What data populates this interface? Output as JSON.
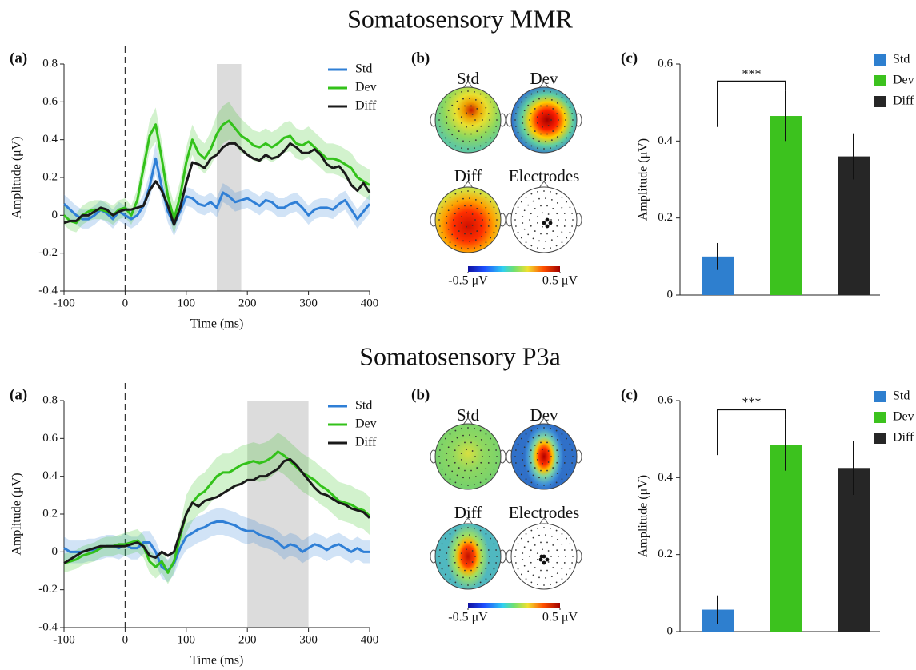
{
  "titles": [
    "Somatosensory MMR",
    "Somatosensory P3a"
  ],
  "chart_data": [
    {
      "type": "line",
      "panel": "(a)",
      "xlabel": "Time (ms)",
      "ylabel": "Amplitude (μV)",
      "x": [
        -100,
        -90,
        -80,
        -70,
        -60,
        -50,
        -40,
        -30,
        -20,
        -10,
        0,
        10,
        20,
        30,
        40,
        50,
        60,
        70,
        80,
        90,
        100,
        110,
        120,
        130,
        140,
        150,
        160,
        170,
        180,
        190,
        200,
        210,
        220,
        230,
        240,
        250,
        260,
        270,
        280,
        290,
        300,
        310,
        320,
        330,
        340,
        350,
        360,
        370,
        380,
        390,
        400
      ],
      "xlim": [
        -100,
        400
      ],
      "xticks": [
        -100,
        0,
        100,
        200,
        300,
        400
      ],
      "ylim": [
        -0.4,
        0.8
      ],
      "yticks": [
        -0.4,
        -0.2,
        0,
        0.2,
        0.4,
        0.6,
        0.8
      ],
      "event_line": 0,
      "window": [
        150,
        190
      ],
      "legend": "upper right",
      "series": [
        {
          "name": "Std",
          "color": "#2f7fd6",
          "values": [
            0.06,
            0.03,
            0.0,
            -0.02,
            -0.02,
            0.0,
            0.03,
            0.01,
            -0.02,
            0.02,
            0.0,
            -0.02,
            0.0,
            0.05,
            0.15,
            0.3,
            0.15,
            0.02,
            -0.05,
            0.02,
            0.1,
            0.09,
            0.06,
            0.05,
            0.07,
            0.04,
            0.12,
            0.1,
            0.07,
            0.08,
            0.09,
            0.07,
            0.05,
            0.08,
            0.07,
            0.04,
            0.04,
            0.06,
            0.07,
            0.04,
            0.0,
            0.03,
            0.04,
            0.04,
            0.03,
            0.06,
            0.08,
            0.03,
            -0.02,
            0.02,
            0.06
          ],
          "error": [
            0.05,
            0.05,
            0.05,
            0.05,
            0.05,
            0.05,
            0.05,
            0.05,
            0.05,
            0.05,
            0.05,
            0.05,
            0.05,
            0.06,
            0.07,
            0.08,
            0.07,
            0.06,
            0.06,
            0.06,
            0.05,
            0.05,
            0.05,
            0.05,
            0.05,
            0.05,
            0.05,
            0.05,
            0.05,
            0.05,
            0.05,
            0.05,
            0.05,
            0.05,
            0.05,
            0.05,
            0.05,
            0.05,
            0.05,
            0.05,
            0.05,
            0.05,
            0.05,
            0.05,
            0.05,
            0.05,
            0.05,
            0.05,
            0.05,
            0.05,
            0.05
          ]
        },
        {
          "name": "Dev",
          "color": "#33c21a",
          "values": [
            0.0,
            -0.03,
            -0.04,
            0.0,
            0.02,
            0.03,
            0.03,
            0.02,
            0.0,
            0.03,
            0.04,
            0.0,
            0.08,
            0.25,
            0.42,
            0.48,
            0.3,
            0.1,
            -0.02,
            0.1,
            0.28,
            0.4,
            0.33,
            0.3,
            0.35,
            0.43,
            0.48,
            0.5,
            0.46,
            0.42,
            0.4,
            0.37,
            0.36,
            0.38,
            0.36,
            0.38,
            0.41,
            0.42,
            0.38,
            0.37,
            0.39,
            0.36,
            0.33,
            0.3,
            0.3,
            0.29,
            0.27,
            0.25,
            0.2,
            0.18,
            0.16
          ],
          "error": [
            0.05,
            0.05,
            0.05,
            0.05,
            0.05,
            0.05,
            0.05,
            0.05,
            0.05,
            0.05,
            0.05,
            0.05,
            0.06,
            0.07,
            0.08,
            0.09,
            0.09,
            0.08,
            0.08,
            0.08,
            0.08,
            0.08,
            0.08,
            0.08,
            0.09,
            0.1,
            0.1,
            0.1,
            0.09,
            0.09,
            0.08,
            0.08,
            0.08,
            0.08,
            0.08,
            0.08,
            0.08,
            0.08,
            0.08,
            0.08,
            0.08,
            0.08,
            0.08,
            0.08,
            0.08,
            0.08,
            0.08,
            0.08,
            0.08,
            0.08,
            0.08
          ]
        },
        {
          "name": "Diff",
          "color": "#1a1a1a",
          "values": [
            -0.04,
            -0.03,
            -0.03,
            0.0,
            0.0,
            0.02,
            0.04,
            0.03,
            0.0,
            0.02,
            0.03,
            0.03,
            0.04,
            0.05,
            0.13,
            0.18,
            0.13,
            0.05,
            -0.05,
            0.04,
            0.17,
            0.28,
            0.27,
            0.25,
            0.3,
            0.32,
            0.36,
            0.38,
            0.38,
            0.35,
            0.32,
            0.3,
            0.29,
            0.32,
            0.3,
            0.31,
            0.34,
            0.38,
            0.36,
            0.33,
            0.33,
            0.35,
            0.32,
            0.27,
            0.25,
            0.26,
            0.22,
            0.16,
            0.13,
            0.17,
            0.12
          ]
        }
      ]
    },
    {
      "type": "topomap",
      "panel": "(b)",
      "maps": [
        "Std",
        "Dev",
        "Diff",
        "Electrodes"
      ],
      "colorbar": {
        "lim": [
          -0.5,
          0.5
        ],
        "ticks": [
          {
            "value": -0.5,
            "label": "-0.5 μV"
          },
          {
            "value": 0.5,
            "label": "0.5 μV"
          }
        ]
      }
    },
    {
      "type": "bar",
      "panel": "(c)",
      "ylabel": "Amplitude (μV)",
      "ylim": [
        0,
        0.6
      ],
      "yticks": [
        0,
        0.2,
        0.4,
        0.6
      ],
      "legend": "upper right",
      "series": [
        {
          "name": "Std",
          "color": "#2e7fcf",
          "values": [
            0.1
          ],
          "error": [
            0.035
          ]
        },
        {
          "name": "Dev",
          "color": "#3cc21e",
          "values": [
            0.465
          ],
          "error": [
            0.065
          ]
        },
        {
          "name": "Diff",
          "color": "#262626",
          "values": [
            0.36
          ],
          "error": [
            0.06
          ]
        }
      ],
      "significance": {
        "label": "***",
        "pair": [
          "Std",
          "Dev"
        ]
      }
    },
    {
      "type": "line",
      "panel": "(a)",
      "xlabel": "Time (ms)",
      "ylabel": "Amplitude (μV)",
      "x": [
        -100,
        -90,
        -80,
        -70,
        -60,
        -50,
        -40,
        -30,
        -20,
        -10,
        0,
        10,
        20,
        30,
        40,
        50,
        60,
        70,
        80,
        90,
        100,
        110,
        120,
        130,
        140,
        150,
        160,
        170,
        180,
        190,
        200,
        210,
        220,
        230,
        240,
        250,
        260,
        270,
        280,
        290,
        300,
        310,
        320,
        330,
        340,
        350,
        360,
        370,
        380,
        390,
        400
      ],
      "xlim": [
        -100,
        400
      ],
      "xticks": [
        -100,
        0,
        100,
        200,
        300,
        400
      ],
      "ylim": [
        -0.4,
        0.8
      ],
      "yticks": [
        -0.4,
        -0.2,
        0,
        0.2,
        0.4,
        0.6,
        0.8
      ],
      "event_line": 0,
      "window": [
        200,
        300
      ],
      "legend": "upper right",
      "series": [
        {
          "name": "Std",
          "color": "#2f7fd6",
          "values": [
            0.02,
            0.0,
            0.0,
            0.0,
            0.01,
            0.01,
            0.02,
            0.03,
            0.03,
            0.02,
            0.04,
            0.02,
            0.02,
            0.05,
            0.05,
            0.0,
            -0.08,
            -0.1,
            -0.06,
            0.02,
            0.08,
            0.1,
            0.12,
            0.13,
            0.15,
            0.16,
            0.16,
            0.15,
            0.14,
            0.12,
            0.11,
            0.11,
            0.09,
            0.08,
            0.07,
            0.05,
            0.02,
            0.04,
            0.03,
            0.0,
            0.02,
            0.04,
            0.03,
            0.01,
            0.03,
            0.04,
            0.02,
            0.0,
            0.02,
            0.0,
            0.0
          ],
          "error": [
            0.06,
            0.06,
            0.06,
            0.06,
            0.06,
            0.06,
            0.06,
            0.06,
            0.06,
            0.06,
            0.06,
            0.06,
            0.06,
            0.06,
            0.06,
            0.06,
            0.06,
            0.06,
            0.06,
            0.06,
            0.07,
            0.07,
            0.07,
            0.07,
            0.07,
            0.07,
            0.07,
            0.07,
            0.07,
            0.07,
            0.07,
            0.06,
            0.06,
            0.06,
            0.06,
            0.06,
            0.06,
            0.06,
            0.06,
            0.06,
            0.06,
            0.06,
            0.06,
            0.06,
            0.06,
            0.06,
            0.06,
            0.06,
            0.06,
            0.06,
            0.06
          ]
        },
        {
          "name": "Dev",
          "color": "#33c21a",
          "values": [
            -0.06,
            -0.05,
            -0.04,
            -0.02,
            -0.01,
            0.0,
            0.02,
            0.03,
            0.03,
            0.04,
            0.04,
            0.05,
            0.06,
            0.03,
            -0.05,
            -0.08,
            -0.05,
            -0.11,
            -0.05,
            0.08,
            0.2,
            0.26,
            0.3,
            0.32,
            0.36,
            0.4,
            0.42,
            0.42,
            0.44,
            0.46,
            0.47,
            0.48,
            0.47,
            0.48,
            0.5,
            0.53,
            0.51,
            0.48,
            0.45,
            0.42,
            0.4,
            0.38,
            0.35,
            0.33,
            0.3,
            0.27,
            0.26,
            0.25,
            0.23,
            0.22,
            0.19
          ],
          "error": [
            0.05,
            0.05,
            0.05,
            0.05,
            0.05,
            0.05,
            0.05,
            0.05,
            0.05,
            0.05,
            0.06,
            0.06,
            0.06,
            0.06,
            0.06,
            0.06,
            0.06,
            0.06,
            0.06,
            0.06,
            0.1,
            0.1,
            0.1,
            0.1,
            0.1,
            0.1,
            0.1,
            0.1,
            0.1,
            0.1,
            0.1,
            0.1,
            0.1,
            0.1,
            0.1,
            0.1,
            0.1,
            0.1,
            0.1,
            0.1,
            0.1,
            0.1,
            0.1,
            0.1,
            0.1,
            0.1,
            0.1,
            0.1,
            0.1,
            0.1,
            0.1
          ]
        },
        {
          "name": "Diff",
          "color": "#1a1a1a",
          "values": [
            -0.06,
            -0.04,
            -0.02,
            0.0,
            0.01,
            0.02,
            0.03,
            0.03,
            0.03,
            0.03,
            0.03,
            0.04,
            0.05,
            0.03,
            -0.02,
            -0.03,
            0.0,
            -0.02,
            0.0,
            0.1,
            0.2,
            0.26,
            0.24,
            0.27,
            0.28,
            0.29,
            0.31,
            0.33,
            0.35,
            0.36,
            0.38,
            0.38,
            0.4,
            0.4,
            0.42,
            0.44,
            0.48,
            0.49,
            0.46,
            0.42,
            0.38,
            0.34,
            0.31,
            0.3,
            0.28,
            0.26,
            0.25,
            0.23,
            0.22,
            0.21,
            0.18
          ]
        }
      ]
    },
    {
      "type": "topomap",
      "panel": "(b)",
      "maps": [
        "Std",
        "Dev",
        "Diff",
        "Electrodes"
      ],
      "colorbar": {
        "lim": [
          -0.5,
          0.5
        ],
        "ticks": [
          {
            "value": -0.5,
            "label": "-0.5 μV"
          },
          {
            "value": 0.5,
            "label": "0.5 μV"
          }
        ]
      }
    },
    {
      "type": "bar",
      "panel": "(c)",
      "ylabel": "Amplitude (μV)",
      "ylim": [
        0,
        0.6
      ],
      "yticks": [
        0,
        0.2,
        0.4,
        0.6
      ],
      "legend": "upper right",
      "series": [
        {
          "name": "Std",
          "color": "#2e7fcf",
          "values": [
            0.057
          ],
          "error": [
            0.037
          ]
        },
        {
          "name": "Dev",
          "color": "#3cc21e",
          "values": [
            0.485
          ],
          "error": [
            0.067
          ]
        },
        {
          "name": "Diff",
          "color": "#262626",
          "values": [
            0.425
          ],
          "error": [
            0.07
          ]
        }
      ],
      "significance": {
        "label": "***",
        "pair": [
          "Std",
          "Dev"
        ]
      }
    }
  ]
}
